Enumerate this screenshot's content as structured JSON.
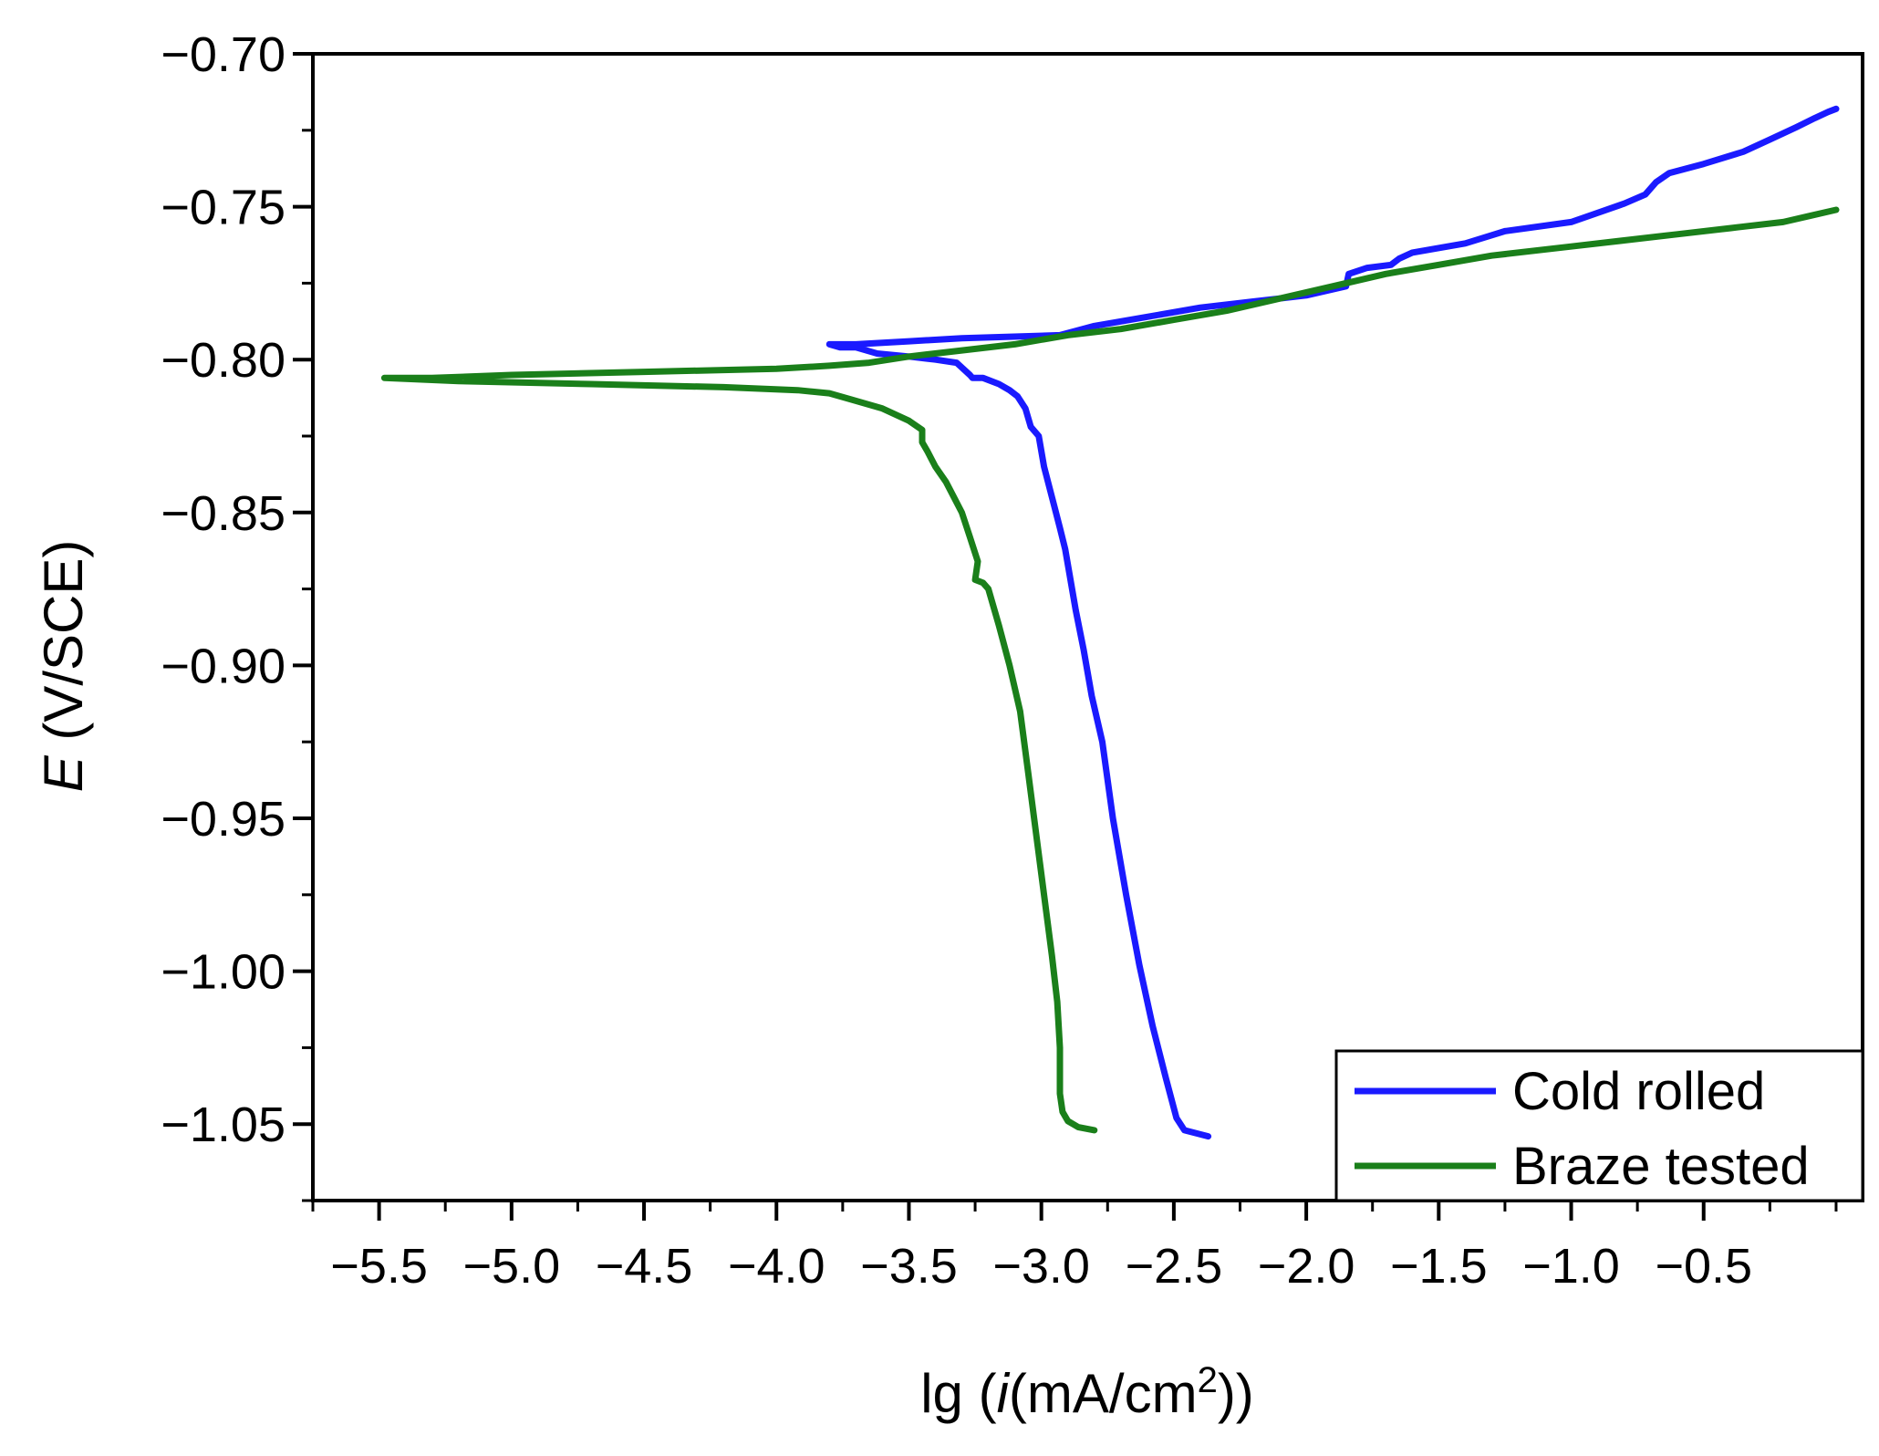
{
  "chart_data": {
    "type": "line",
    "title": "",
    "xlabel": {
      "prefix": "lg (",
      "italic": "i",
      "unit": "(mA/cm",
      "sup": "2",
      "suffix": "))"
    },
    "ylabel": {
      "italic": "E",
      "unit": " (V/SCE)"
    },
    "xlim": [
      -5.75,
      0.1
    ],
    "ylim": [
      -1.075,
      -0.7
    ],
    "xticks": [
      -5.5,
      -5.0,
      -4.5,
      -4.0,
      -3.5,
      -3.0,
      -2.5,
      -2.0,
      -1.5,
      -1.0,
      -0.5
    ],
    "xtick_labels": [
      "−5.5",
      "−5.0",
      "−4.5",
      "−4.0",
      "−3.5",
      "−3.0",
      "−2.5",
      "−2.0",
      "−1.5",
      "−1.0",
      "−0.5"
    ],
    "yticks": [
      -0.7,
      -0.75,
      -0.8,
      -0.85,
      -0.9,
      -0.95,
      -1.0,
      -1.05
    ],
    "ytick_labels": [
      "−0.70",
      "−0.75",
      "−0.80",
      "−0.85",
      "−0.90",
      "−0.95",
      "−1.00",
      "−1.05"
    ],
    "legend_position": "bottom-right",
    "series": [
      {
        "name": "Cold rolled",
        "color": "#1a1aff",
        "x": [
          -2.37,
          -2.46,
          -2.49,
          -2.53,
          -2.58,
          -2.63,
          -2.68,
          -2.73,
          -2.77,
          -2.81,
          -2.84,
          -2.87,
          -2.89,
          -2.91,
          -2.93,
          -2.96,
          -2.99,
          -3.01,
          -3.04,
          -3.06,
          -3.09,
          -3.12,
          -3.16,
          -3.22,
          -3.26,
          -3.27,
          -3.32,
          -3.4,
          -3.5,
          -3.62,
          -3.7,
          -3.76,
          -3.8,
          -3.7,
          -3.5,
          -3.3,
          -2.93,
          -2.8,
          -2.6,
          -2.4,
          -2.2,
          -2.0,
          -1.85,
          -1.84,
          -1.77,
          -1.68,
          -1.65,
          -1.6,
          -1.4,
          -1.25,
          -1.0,
          -0.9,
          -0.8,
          -0.72,
          -0.68,
          -0.63,
          -0.5,
          -0.35,
          -0.25,
          -0.15,
          -0.08,
          -0.03,
          0.0
        ],
        "y": [
          -1.054,
          -1.052,
          -1.048,
          -1.035,
          -1.018,
          -0.998,
          -0.975,
          -0.95,
          -0.925,
          -0.91,
          -0.895,
          -0.882,
          -0.872,
          -0.862,
          -0.855,
          -0.845,
          -0.835,
          -0.825,
          -0.822,
          -0.816,
          -0.812,
          -0.81,
          -0.808,
          -0.806,
          -0.806,
          -0.805,
          -0.801,
          -0.8,
          -0.799,
          -0.798,
          -0.796,
          -0.796,
          -0.795,
          -0.795,
          -0.794,
          -0.793,
          -0.792,
          -0.789,
          -0.786,
          -0.783,
          -0.781,
          -0.779,
          -0.776,
          -0.772,
          -0.77,
          -0.769,
          -0.767,
          -0.765,
          -0.762,
          -0.758,
          -0.755,
          -0.752,
          -0.749,
          -0.746,
          -0.742,
          -0.739,
          -0.736,
          -0.732,
          -0.728,
          -0.724,
          -0.721,
          -0.719,
          -0.718
        ]
      },
      {
        "name": "Braze tested",
        "color": "#1a7f1a",
        "x": [
          -2.8,
          -2.86,
          -2.9,
          -2.92,
          -2.93,
          -2.93,
          -2.94,
          -2.96,
          -2.99,
          -3.02,
          -3.05,
          -3.08,
          -3.12,
          -3.16,
          -3.2,
          -3.22,
          -3.25,
          -3.24,
          -3.27,
          -3.3,
          -3.33,
          -3.36,
          -3.4,
          -3.43,
          -3.45,
          -3.45,
          -3.5,
          -3.6,
          -3.72,
          -3.8,
          -3.92,
          -4.2,
          -4.7,
          -5.2,
          -5.48,
          -5.3,
          -5.0,
          -4.5,
          -4.0,
          -3.8,
          -3.65,
          -3.5,
          -3.3,
          -3.1,
          -2.9,
          -2.7,
          -2.5,
          -2.3,
          -2.1,
          -1.9,
          -1.7,
          -1.5,
          -1.3,
          -1.0,
          -0.8,
          -0.6,
          -0.4,
          -0.2,
          -0.1,
          0.0
        ],
        "y": [
          -1.052,
          -1.051,
          -1.049,
          -1.046,
          -1.04,
          -1.025,
          -1.01,
          -0.995,
          -0.975,
          -0.955,
          -0.935,
          -0.915,
          -0.9,
          -0.887,
          -0.875,
          -0.873,
          -0.872,
          -0.866,
          -0.858,
          -0.85,
          -0.845,
          -0.84,
          -0.835,
          -0.83,
          -0.827,
          -0.823,
          -0.82,
          -0.816,
          -0.813,
          -0.811,
          -0.81,
          -0.809,
          -0.808,
          -0.807,
          -0.806,
          -0.806,
          -0.805,
          -0.804,
          -0.803,
          -0.802,
          -0.801,
          -0.799,
          -0.797,
          -0.795,
          -0.792,
          -0.79,
          -0.787,
          -0.784,
          -0.78,
          -0.776,
          -0.772,
          -0.769,
          -0.766,
          -0.763,
          -0.761,
          -0.759,
          -0.757,
          -0.755,
          -0.753,
          -0.751
        ]
      }
    ]
  }
}
